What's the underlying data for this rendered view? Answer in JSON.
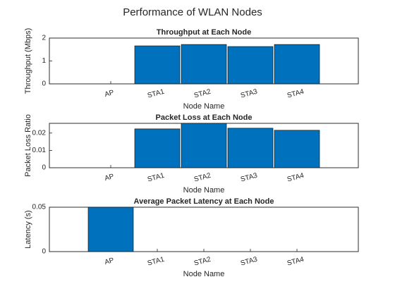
{
  "title": "Performance of WLAN Nodes",
  "chart_data": [
    {
      "type": "bar",
      "title": "Throughput at Each Node",
      "x_label": "Node Name",
      "y_label": "Throughput (Mbps)",
      "categories": [
        "AP",
        "STA1",
        "STA2",
        "STA3",
        "STA4"
      ],
      "values": [
        0,
        1.66,
        1.72,
        1.63,
        1.72
      ],
      "color": "#0072BD",
      "ylim": [
        0,
        2
      ],
      "yticks": [
        0,
        1,
        2
      ],
      "grid": false
    },
    {
      "type": "bar",
      "title": "Packet Loss at Each Node",
      "x_label": "Node Name",
      "y_label": "Packet Loss Ratio",
      "categories": [
        "AP",
        "STA1",
        "STA2",
        "STA3",
        "STA4"
      ],
      "values": [
        0,
        0.0224,
        0.0256,
        0.0228,
        0.0216
      ],
      "color": "#0072BD",
      "ylim": [
        0,
        0.0256
      ],
      "yticks": [
        0,
        0.01,
        0.02
      ],
      "grid": false
    },
    {
      "type": "bar",
      "title": "Average Packet Latency at Each Node",
      "x_label": "Node Name",
      "y_label": "Latency (s)",
      "categories": [
        "AP",
        "STA1",
        "STA2",
        "STA3",
        "STA4"
      ],
      "values": [
        0.05,
        0,
        0,
        0,
        0
      ],
      "color": "#0072BD",
      "ylim": [
        0,
        0.05
      ],
      "yticks": [
        0,
        0.05
      ],
      "grid": false
    }
  ]
}
